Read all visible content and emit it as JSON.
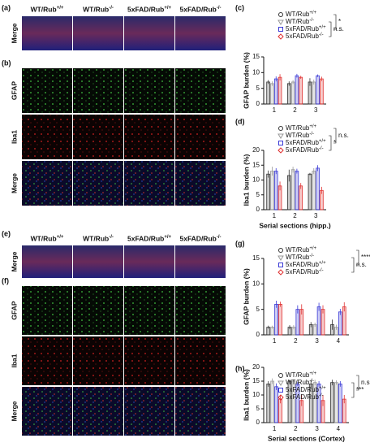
{
  "left_panels": [
    {
      "label": "(a)",
      "columns": [
        "WT/Rub+/+",
        "WT/Rub-/-",
        "5xFAD/Rub+/+",
        "5xFAD/Rub-/-"
      ],
      "rows": [
        "Merge"
      ]
    },
    {
      "label": "(b)",
      "rows": [
        "GFAP",
        "Iba1",
        "Merge"
      ]
    },
    {
      "label": "(e)",
      "columns": [
        "WT/Rub+/+",
        "WT/Rub-/-",
        "5xFAD/Rub+/+",
        "5xFAD/Rub-/-"
      ],
      "rows": [
        "Merge"
      ]
    },
    {
      "label": "(f)",
      "rows": [
        "GFAP",
        "Iba1",
        "Merge"
      ]
    }
  ],
  "chart_data": [
    {
      "type": "bar",
      "panel": "(c)",
      "ylabel": "GFAP burden (%)",
      "categories": [
        "1",
        "2",
        "3"
      ],
      "series": [
        {
          "name": "WT/Rub+/+",
          "color": "#333333",
          "values": [
            7,
            6.5,
            7
          ],
          "errors": [
            0.6,
            0.7,
            1.2
          ]
        },
        {
          "name": "WT/Rub-/-",
          "color": "#999999",
          "values": [
            6.5,
            7,
            7
          ],
          "errors": [
            0.7,
            0.6,
            0.8
          ]
        },
        {
          "name": "5xFAD/Rub+/+",
          "color": "#3b3bd6",
          "values": [
            8,
            9,
            9
          ],
          "errors": [
            0.8,
            0.6,
            0.4
          ]
        },
        {
          "name": "5xFAD/Rub-/-",
          "color": "#e03030",
          "values": [
            8.5,
            8.5,
            8
          ],
          "errors": [
            1,
            0.5,
            0.7
          ]
        }
      ],
      "ylim": [
        0,
        15
      ],
      "yticks": [
        0,
        5,
        10,
        15
      ],
      "annotations": [
        "*",
        "n.s."
      ]
    },
    {
      "type": "bar",
      "panel": "(d)",
      "ylabel": "Iba1 burden (%)",
      "xlabel": "Serial sections (hipp.)",
      "categories": [
        "1",
        "2",
        "3"
      ],
      "series": [
        {
          "name": "WT/Rub+/+",
          "color": "#333333",
          "values": [
            12,
            11.5,
            12
          ],
          "errors": [
            1.2,
            2,
            0.4
          ]
        },
        {
          "name": "WT/Rub-/-",
          "color": "#999999",
          "values": [
            13,
            13.5,
            13
          ],
          "errors": [
            1.5,
            1,
            1
          ]
        },
        {
          "name": "5xFAD/Rub+/+",
          "color": "#3b3bd6",
          "values": [
            13,
            13,
            14
          ],
          "errors": [
            1,
            0.8,
            1
          ]
        },
        {
          "name": "5xFAD/Rub-/-",
          "color": "#e03030",
          "values": [
            8,
            8,
            6.5
          ],
          "errors": [
            1.5,
            1,
            1.2
          ]
        }
      ],
      "ylim": [
        0,
        20
      ],
      "yticks": [
        0,
        5,
        10,
        15,
        20
      ],
      "annotations": [
        "n.s.",
        "*"
      ]
    },
    {
      "type": "bar",
      "panel": "(g)",
      "ylabel": "GFAP burden (%)",
      "categories": [
        "1",
        "2",
        "3",
        "4"
      ],
      "series": [
        {
          "name": "WT/Rub+/+",
          "color": "#333333",
          "values": [
            1.5,
            1.5,
            2,
            2
          ],
          "errors": [
            0.3,
            0.4,
            0.5,
            1
          ]
        },
        {
          "name": "WT/Rub-/-",
          "color": "#999999",
          "values": [
            1.5,
            1.5,
            2,
            1.5
          ],
          "errors": [
            0.3,
            0.4,
            0.4,
            0.5
          ]
        },
        {
          "name": "5xFAD/Rub+/+",
          "color": "#3b3bd6",
          "values": [
            6,
            5,
            5.5,
            4.5
          ],
          "errors": [
            0.7,
            0.8,
            0.8,
            0.6
          ]
        },
        {
          "name": "5xFAD/Rub-/-",
          "color": "#e03030",
          "values": [
            6,
            5,
            5,
            5.5
          ],
          "errors": [
            0.5,
            1,
            0.8,
            0.9
          ]
        }
      ],
      "ylim": [
        0,
        15
      ],
      "yticks": [
        0,
        5,
        10,
        15
      ],
      "annotations": [
        "****",
        "n.s."
      ]
    },
    {
      "type": "bar",
      "panel": "(h)",
      "ylabel": "Iba1 burden (%)",
      "xlabel": "Serial sections (Cortex)",
      "categories": [
        "1",
        "2",
        "3",
        "4"
      ],
      "series": [
        {
          "name": "WT/Rub+/+",
          "color": "#333333",
          "values": [
            14,
            15,
            14,
            14.5
          ],
          "errors": [
            1,
            0.4,
            1.5,
            1
          ]
        },
        {
          "name": "WT/Rub-/-",
          "color": "#999999",
          "values": [
            15,
            15,
            14.5,
            14.5
          ],
          "errors": [
            1,
            0.5,
            1,
            0.8
          ]
        },
        {
          "name": "5xFAD/Rub+/+",
          "color": "#3b3bd6",
          "values": [
            13,
            14,
            14,
            14
          ],
          "errors": [
            1.2,
            0.8,
            1,
            1
          ]
        },
        {
          "name": "5xFAD/Rub-/-",
          "color": "#e03030",
          "values": [
            8.5,
            8,
            8,
            8.5
          ],
          "errors": [
            1.5,
            2,
            2,
            1.5
          ]
        }
      ],
      "ylim": [
        0,
        20
      ],
      "yticks": [
        0,
        5,
        10,
        15,
        20
      ],
      "annotations": [
        "n.s.",
        "***"
      ]
    }
  ]
}
